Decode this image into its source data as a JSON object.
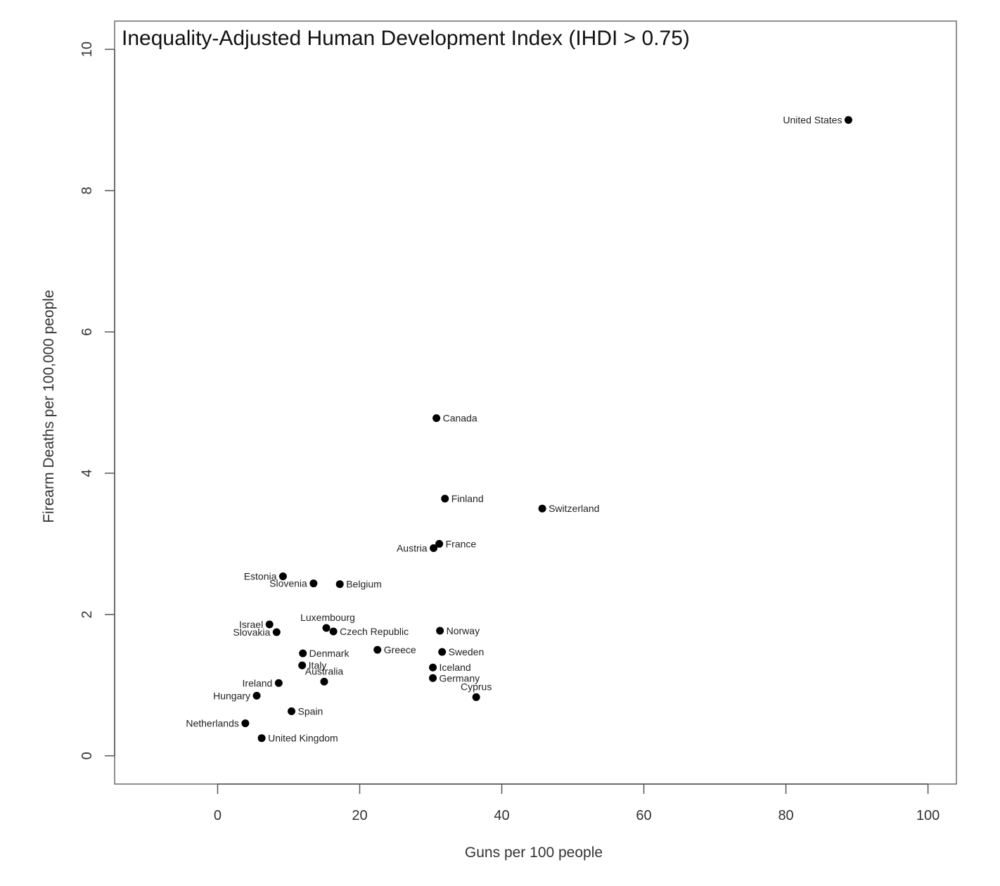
{
  "chart_data": {
    "type": "scatter",
    "title": "Inequality-Adjusted Human Development Index (IHDI > 0.75)",
    "xlabel": "Guns per 100 people",
    "ylabel": "Firearm Deaths per 100,000 people",
    "xlim": [
      -14.5,
      104
    ],
    "ylim": [
      -0.4,
      10.4
    ],
    "xticks": [
      0,
      20,
      40,
      60,
      80,
      100
    ],
    "yticks": [
      0,
      2,
      4,
      6,
      8,
      10
    ],
    "xtick_labels": [
      "0",
      "20",
      "40",
      "60",
      "80",
      "100"
    ],
    "ytick_labels": [
      "0",
      "2",
      "4",
      "6",
      "8",
      "10"
    ],
    "grid": false,
    "points": [
      {
        "label": "United States",
        "x": 88.8,
        "y": 9.0,
        "label_pos": "left"
      },
      {
        "label": "Canada",
        "x": 30.8,
        "y": 4.78,
        "label_pos": "right"
      },
      {
        "label": "Finland",
        "x": 32.0,
        "y": 3.64,
        "label_pos": "right"
      },
      {
        "label": "Switzerland",
        "x": 45.7,
        "y": 3.5,
        "label_pos": "right"
      },
      {
        "label": "France",
        "x": 31.2,
        "y": 3.0,
        "label_pos": "right"
      },
      {
        "label": "Austria",
        "x": 30.4,
        "y": 2.94,
        "label_pos": "left"
      },
      {
        "label": "Estonia",
        "x": 9.2,
        "y": 2.54,
        "label_pos": "left"
      },
      {
        "label": "Slovenia",
        "x": 13.5,
        "y": 2.44,
        "label_pos": "left"
      },
      {
        "label": "Belgium",
        "x": 17.2,
        "y": 2.43,
        "label_pos": "right"
      },
      {
        "label": "Luxembourg",
        "x": 15.3,
        "y": 1.81,
        "label_pos": "above-left"
      },
      {
        "label": "Czech Republic",
        "x": 16.3,
        "y": 1.76,
        "label_pos": "right"
      },
      {
        "label": "Israel",
        "x": 7.3,
        "y": 1.86,
        "label_pos": "left"
      },
      {
        "label": "Slovakia",
        "x": 8.3,
        "y": 1.75,
        "label_pos": "left"
      },
      {
        "label": "Norway",
        "x": 31.3,
        "y": 1.77,
        "label_pos": "right"
      },
      {
        "label": "Greece",
        "x": 22.5,
        "y": 1.5,
        "label_pos": "right"
      },
      {
        "label": "Sweden",
        "x": 31.6,
        "y": 1.47,
        "label_pos": "right"
      },
      {
        "label": "Denmark",
        "x": 12.0,
        "y": 1.45,
        "label_pos": "right"
      },
      {
        "label": "Italy",
        "x": 11.9,
        "y": 1.28,
        "label_pos": "right"
      },
      {
        "label": "Iceland",
        "x": 30.3,
        "y": 1.25,
        "label_pos": "right"
      },
      {
        "label": "Australia",
        "x": 15.0,
        "y": 1.05,
        "label_pos": "above"
      },
      {
        "label": "Germany",
        "x": 30.3,
        "y": 1.1,
        "label_pos": "right"
      },
      {
        "label": "Ireland",
        "x": 8.6,
        "y": 1.03,
        "label_pos": "left"
      },
      {
        "label": "Cyprus",
        "x": 36.4,
        "y": 0.83,
        "label_pos": "above"
      },
      {
        "label": "Hungary",
        "x": 5.5,
        "y": 0.85,
        "label_pos": "left"
      },
      {
        "label": "Spain",
        "x": 10.4,
        "y": 0.63,
        "label_pos": "right"
      },
      {
        "label": "Netherlands",
        "x": 3.9,
        "y": 0.46,
        "label_pos": "left"
      },
      {
        "label": "United Kingdom",
        "x": 6.2,
        "y": 0.25,
        "label_pos": "right"
      }
    ]
  }
}
